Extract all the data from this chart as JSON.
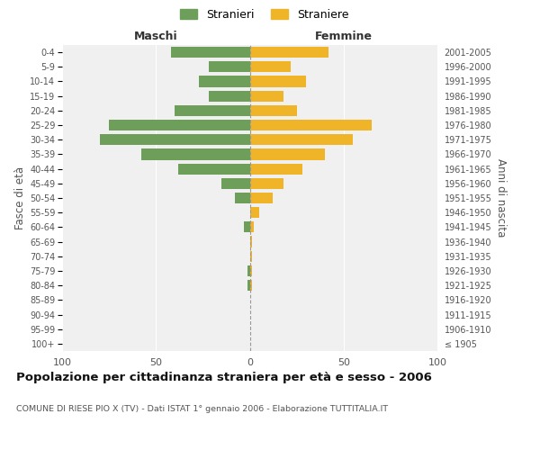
{
  "age_groups": [
    "100+",
    "95-99",
    "90-94",
    "85-89",
    "80-84",
    "75-79",
    "70-74",
    "65-69",
    "60-64",
    "55-59",
    "50-54",
    "45-49",
    "40-44",
    "35-39",
    "30-34",
    "25-29",
    "20-24",
    "15-19",
    "10-14",
    "5-9",
    "0-4"
  ],
  "birth_years": [
    "≤ 1905",
    "1906-1910",
    "1911-1915",
    "1916-1920",
    "1921-1925",
    "1926-1930",
    "1931-1935",
    "1936-1940",
    "1941-1945",
    "1946-1950",
    "1951-1955",
    "1956-1960",
    "1961-1965",
    "1966-1970",
    "1971-1975",
    "1976-1980",
    "1981-1985",
    "1986-1990",
    "1991-1995",
    "1996-2000",
    "2001-2005"
  ],
  "males": [
    0,
    0,
    0,
    0,
    1,
    1,
    0,
    0,
    3,
    0,
    8,
    15,
    38,
    58,
    80,
    75,
    40,
    22,
    27,
    22,
    42
  ],
  "females": [
    0,
    0,
    0,
    0,
    1,
    1,
    1,
    1,
    2,
    5,
    12,
    18,
    28,
    40,
    55,
    65,
    25,
    18,
    30,
    22,
    42
  ],
  "male_color": "#6d9e5a",
  "female_color": "#f0b429",
  "background_color": "#f0f0f0",
  "bar_height": 0.75,
  "xlim": 100,
  "title": "Popolazione per cittadinanza straniera per età e sesso - 2006",
  "subtitle": "COMUNE DI RIESE PIO X (TV) - Dati ISTAT 1° gennaio 2006 - Elaborazione TUTTITALIA.IT",
  "ylabel_left": "Fasce di età",
  "ylabel_right": "Anni di nascita",
  "xlabel_left": "Maschi",
  "xlabel_right": "Femmine",
  "legend_stranieri": "Stranieri",
  "legend_straniere": "Straniere"
}
